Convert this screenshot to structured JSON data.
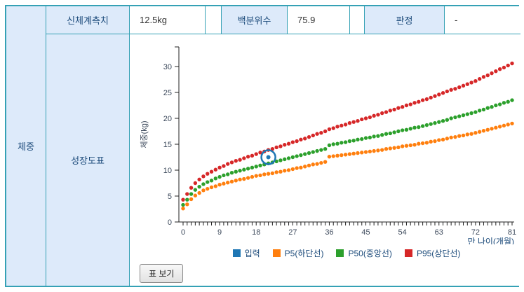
{
  "table": {
    "row_label": "체중",
    "section_label": "성장도표",
    "measure_header": "신체계측치",
    "measure_value": "12.5kg",
    "percentile_header": "백분위수",
    "percentile_value": "75.9",
    "judgment_header": "판정",
    "judgment_value": "-"
  },
  "controls": {
    "table_view_button": "표 보기"
  },
  "colors": {
    "border_teal": "#35a1b5",
    "header_bg": "#ddeafa",
    "label_navy": "#1b4a7a",
    "axis": "#222222",
    "tick_text": "#3d4a5c",
    "input_blue": "#1f77b4",
    "p5_orange": "#ff7f0e",
    "p50_green": "#2ca02c",
    "p95_red": "#d62728"
  },
  "chart_data": {
    "type": "scatter",
    "title": "",
    "xlabel": "만 나이(개월)",
    "ylabel": "체중(kg)",
    "xlim": [
      0,
      81
    ],
    "ylim": [
      0,
      32
    ],
    "x_ticks": [
      0,
      9,
      18,
      27,
      36,
      45,
      54,
      63,
      72,
      81
    ],
    "y_ticks": [
      0,
      5,
      10,
      15,
      20,
      25,
      30
    ],
    "x_minor_tick_every": 1,
    "grid": false,
    "legend_position": "bottom",
    "series": [
      {
        "name": "입력",
        "color": "#1f77b4",
        "kind": "input_point",
        "points": [
          [
            21,
            12.5
          ]
        ]
      },
      {
        "name": "P5(하단선)",
        "color": "#ff7f0e",
        "kind": "dots",
        "start_month": 0,
        "values": [
          2.6,
          3.4,
          4.4,
          5.1,
          5.6,
          6.1,
          6.4,
          6.7,
          6.9,
          7.2,
          7.4,
          7.6,
          7.8,
          8.0,
          8.2,
          8.3,
          8.5,
          8.7,
          8.9,
          9.0,
          9.2,
          9.3,
          9.4,
          9.6,
          9.7,
          9.9,
          10.0,
          10.2,
          10.4,
          10.5,
          10.7,
          10.9,
          11.1,
          11.2,
          11.4,
          11.6,
          12.6,
          12.7,
          12.8,
          12.9,
          13.0,
          13.1,
          13.2,
          13.3,
          13.4,
          13.5,
          13.6,
          13.7,
          13.8,
          13.9,
          14.1,
          14.2,
          14.3,
          14.4,
          14.6,
          14.7,
          14.8,
          14.9,
          15.1,
          15.2,
          15.3,
          15.5,
          15.6,
          15.8,
          15.9,
          16.1,
          16.3,
          16.4,
          16.6,
          16.7,
          16.9,
          17.0,
          17.2,
          17.4,
          17.6,
          17.8,
          18.0,
          18.2,
          18.4,
          18.6,
          18.8,
          19.0
        ]
      },
      {
        "name": "P50(중앙선)",
        "color": "#2ca02c",
        "kind": "dots",
        "start_month": 0,
        "values": [
          3.3,
          4.3,
          5.4,
          6.2,
          6.8,
          7.3,
          7.7,
          8.0,
          8.4,
          8.7,
          9.0,
          9.2,
          9.5,
          9.7,
          9.9,
          10.1,
          10.3,
          10.5,
          10.7,
          10.9,
          11.1,
          11.3,
          11.5,
          11.7,
          11.9,
          12.1,
          12.3,
          12.5,
          12.7,
          12.9,
          13.1,
          13.3,
          13.5,
          13.7,
          13.9,
          14.1,
          14.8,
          15.0,
          15.1,
          15.3,
          15.4,
          15.6,
          15.7,
          15.9,
          16.0,
          16.2,
          16.3,
          16.5,
          16.6,
          16.8,
          17.0,
          17.1,
          17.3,
          17.5,
          17.7,
          17.8,
          18.0,
          18.2,
          18.3,
          18.5,
          18.7,
          18.9,
          19.1,
          19.3,
          19.5,
          19.7,
          20.0,
          20.2,
          20.4,
          20.6,
          20.8,
          21.0,
          21.2,
          21.5,
          21.7,
          22.0,
          22.2,
          22.5,
          22.7,
          23.0,
          23.2,
          23.5
        ]
      },
      {
        "name": "P95(상단선)",
        "color": "#d62728",
        "kind": "dots",
        "start_month": 0,
        "values": [
          4.3,
          5.4,
          6.6,
          7.5,
          8.2,
          8.8,
          9.3,
          9.7,
          10.1,
          10.5,
          10.8,
          11.2,
          11.5,
          11.8,
          12.0,
          12.3,
          12.6,
          12.8,
          13.1,
          13.4,
          13.6,
          13.9,
          14.1,
          14.4,
          14.6,
          14.9,
          15.1,
          15.4,
          15.6,
          15.9,
          16.1,
          16.4,
          16.7,
          17.0,
          17.2,
          17.5,
          17.9,
          18.1,
          18.4,
          18.6,
          18.8,
          19.1,
          19.3,
          19.5,
          19.8,
          20.0,
          20.2,
          20.5,
          20.7,
          21.0,
          21.2,
          21.5,
          21.7,
          22.0,
          22.2,
          22.5,
          22.7,
          23.0,
          23.2,
          23.5,
          23.7,
          24.0,
          24.3,
          24.6,
          24.9,
          25.2,
          25.5,
          25.7,
          26.0,
          26.3,
          26.6,
          26.9,
          27.2,
          27.6,
          28.0,
          28.3,
          28.7,
          29.1,
          29.5,
          29.8,
          30.2,
          30.6
        ]
      }
    ]
  }
}
